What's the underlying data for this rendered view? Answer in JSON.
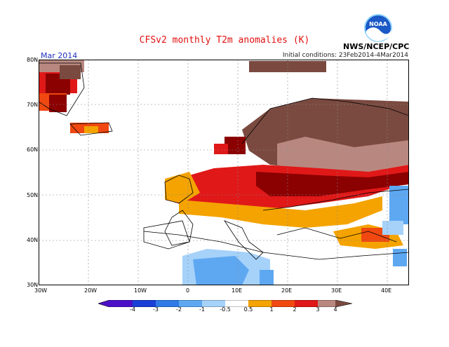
{
  "title": "CFSv2 monthly T2m anomalies (K)",
  "month": "Mar 2014",
  "initial_conditions": "Initial conditions: 23Feb2014-4Mar2014",
  "agency": "NWS/NCEP/CPC",
  "logo_text": "NOAA",
  "axes": {
    "lat_ticks": [
      "80N",
      "70N",
      "60N",
      "50N",
      "40N",
      "30N"
    ],
    "lon_ticks": [
      "30W",
      "20W",
      "10W",
      "0",
      "10E",
      "20E",
      "30E",
      "40E"
    ]
  },
  "colorbar": {
    "labels": [
      "-4",
      "-3",
      "-2",
      "-1",
      "-0.5",
      "0.5",
      "1",
      "2",
      "3",
      "4"
    ],
    "colors": [
      "#4b0fc8",
      "#1a3fd6",
      "#2f7ae6",
      "#5ea8f2",
      "#a6d2fa",
      "#ffffff",
      "#f4a300",
      "#f04810",
      "#e01818",
      "#8b0000",
      "#b88880",
      "#7a4a40"
    ]
  },
  "colors": {
    "title": "#e01010",
    "month": "#2030c0",
    "land_border": "#000000"
  }
}
